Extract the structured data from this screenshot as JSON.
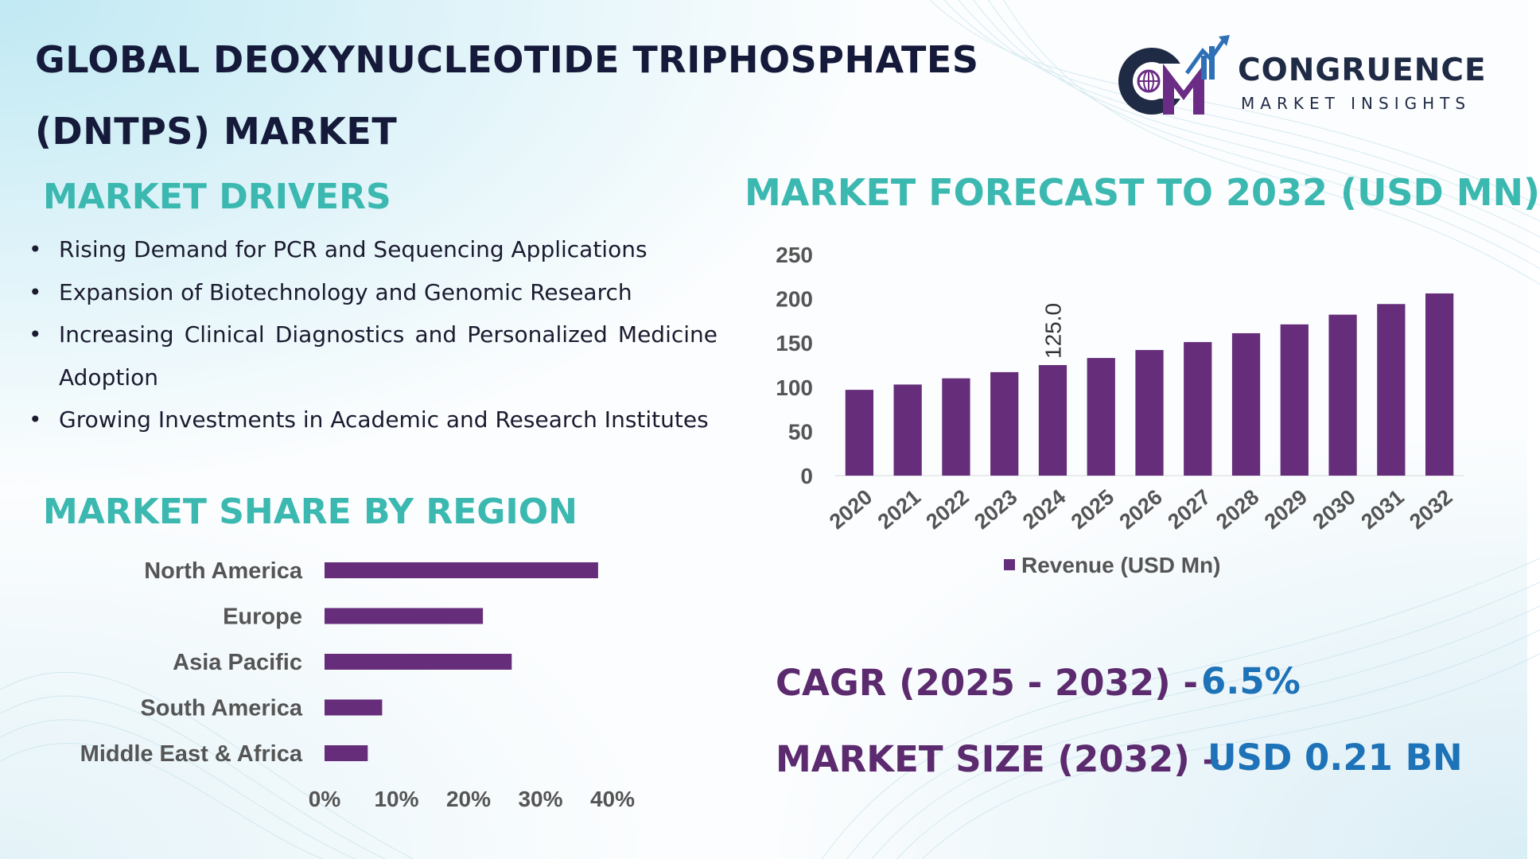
{
  "title_lines": [
    "GLOBAL DEOXYNUCLEOTIDE TRIPHOSPHATES",
    "(DNTPS) MARKET"
  ],
  "brand": {
    "name": "CONGRUENCE",
    "tagline": "MARKET INSIGHTS",
    "colors": {
      "navy": "#1f2a44",
      "purple": "#6a2c84",
      "blue": "#2e6fb6"
    }
  },
  "drivers": {
    "heading": "MARKET DRIVERS",
    "bullet": "•",
    "items": [
      "Rising Demand for PCR and Sequencing Applications",
      "Expansion of Biotechnology and Genomic Research",
      "Increasing Clinical Diagnostics and Personalized Medicine Adoption",
      "Growing Investments in Academic and Research Institutes"
    ]
  },
  "forecast": {
    "heading": "MARKET FORECAST TO 2032 (USD MN)"
  },
  "region": {
    "heading": "MARKET SHARE BY REGION"
  },
  "stats": {
    "cagr_label": "CAGR (2025 - 2032) -",
    "cagr_value": "6.5%",
    "size_label": "MARKET SIZE (2032) –",
    "size_value": "USD 0.21 BN"
  },
  "colors": {
    "bar": "#652d7a",
    "heading_teal": "#3bb8b0",
    "label_purple": "#5c2a6e",
    "value_blue": "#1d72b8",
    "axis_text": "#555555",
    "title_navy": "#151a3a"
  },
  "chart_data": [
    {
      "type": "bar",
      "categories": [
        "2020",
        "2021",
        "2022",
        "2023",
        "2024",
        "2025",
        "2026",
        "2027",
        "2028",
        "2029",
        "2030",
        "2031",
        "2032"
      ],
      "series": [
        {
          "name": "Revenue (USD Mn)",
          "values": [
            97,
            103,
            110,
            117,
            125,
            133,
            142,
            151,
            161,
            171,
            182,
            194,
            206
          ]
        }
      ],
      "data_labels": [
        {
          "category": "2024",
          "text": "125.0"
        }
      ],
      "ylim": [
        0,
        250
      ],
      "yticks": [
        0,
        50,
        100,
        150,
        200,
        250
      ],
      "legend_position": "bottom",
      "grid": false
    },
    {
      "type": "bar",
      "orientation": "horizontal",
      "categories": [
        "North America",
        "Europe",
        "Asia Pacific",
        "South America",
        "Middle East & Africa"
      ],
      "values": [
        38,
        22,
        26,
        8,
        6
      ],
      "xlim": [
        0,
        40
      ],
      "xticks": [
        "0%",
        "10%",
        "20%",
        "30%",
        "40%"
      ],
      "grid": false
    }
  ]
}
